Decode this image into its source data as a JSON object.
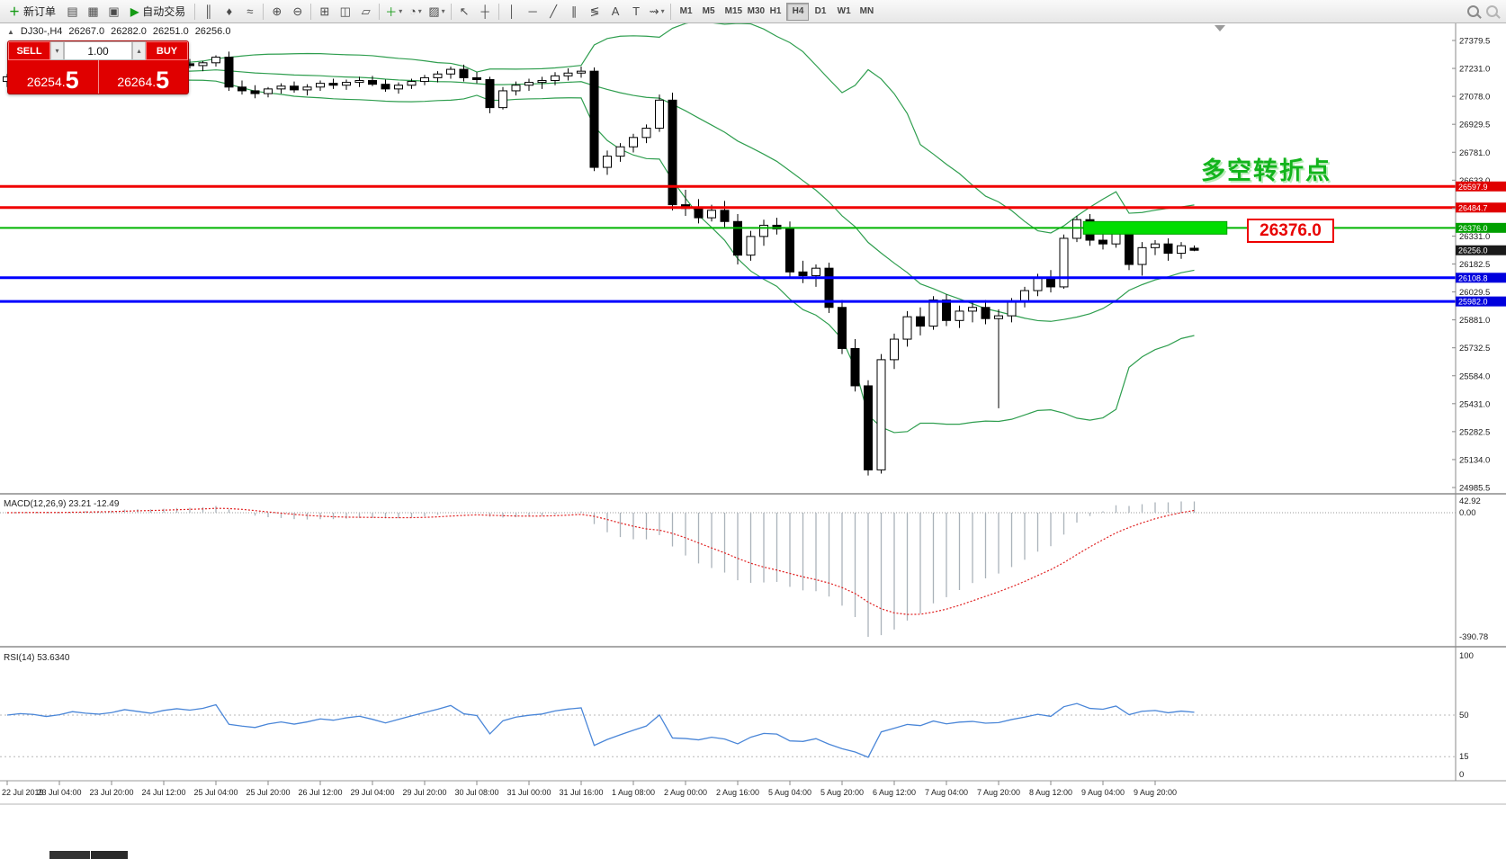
{
  "toolbar": {
    "new_order": {
      "icon_glyph": "＋",
      "label": "新订单"
    },
    "autotrading": {
      "icon_glyph": "▶",
      "label": "自动交易"
    },
    "icons_left": [
      {
        "name": "new-chart-icon",
        "glyph": "▤"
      },
      {
        "name": "profiles-icon",
        "glyph": "▦"
      },
      {
        "name": "data-window-icon",
        "glyph": "▣"
      }
    ],
    "icons_right": [
      {
        "sep": true
      },
      {
        "name": "bar-chart-icon",
        "glyph": "║"
      },
      {
        "name": "candlestick-icon",
        "glyph": "♦"
      },
      {
        "name": "line-chart-icon",
        "glyph": "≈"
      },
      {
        "sep": true
      },
      {
        "name": "zoom-in-icon",
        "glyph": "⊕"
      },
      {
        "name": "zoom-out-icon",
        "glyph": "⊖"
      },
      {
        "sep": true
      },
      {
        "name": "tile-windows-icon",
        "glyph": "⊞"
      },
      {
        "name": "arrange-windows-icon",
        "glyph": "◫"
      },
      {
        "name": "cascade-windows-icon",
        "glyph": "▱"
      },
      {
        "sep": true
      },
      {
        "name": "indicators-icon",
        "glyph": "＋",
        "color": "#149a14",
        "caret": true
      },
      {
        "name": "periods-icon",
        "glyph": "◔",
        "caret": true
      },
      {
        "name": "templates-icon",
        "glyph": "▨",
        "caret": true
      },
      {
        "sep": true
      },
      {
        "name": "cursor-icon",
        "glyph": "↖"
      },
      {
        "name": "crosshair-icon",
        "glyph": "┼"
      },
      {
        "sep": true
      },
      {
        "name": "vertical-line-icon",
        "glyph": "│"
      },
      {
        "name": "horizontal-line-icon",
        "glyph": "─"
      },
      {
        "name": "trendline-icon",
        "glyph": "╱"
      },
      {
        "name": "channel-icon",
        "glyph": "∥"
      },
      {
        "name": "fibonacci-icon",
        "glyph": "≶"
      },
      {
        "name": "text-icon",
        "glyph": "A"
      },
      {
        "name": "label-icon",
        "glyph": "T"
      },
      {
        "name": "arrows-icon",
        "glyph": "⇝",
        "caret": true
      },
      {
        "sep": true
      }
    ],
    "timeframes": [
      "M1",
      "M5",
      "M15",
      "M30",
      "H1",
      "H4",
      "D1",
      "W1",
      "MN"
    ],
    "active_timeframe": "H4"
  },
  "chart": {
    "header": {
      "icon": "▲",
      "symbol_period": "DJ30-,H4",
      "open": "26267.0",
      "high": "26282.0",
      "low": "26251.0",
      "close": "26256.0"
    },
    "trade_panel": {
      "sell_label": "SELL",
      "buy_label": "BUY",
      "volume": "1.00",
      "spin_down": "▾",
      "spin_up": "▴",
      "sell_price_main": "26254.",
      "sell_price_big": "5",
      "buy_price_main": "26264.",
      "buy_price_big": "5",
      "panel_color": "#e00000"
    },
    "annotations": {
      "turning_point_text": "多空转折点",
      "turning_point_color": "#12b41c",
      "price_box_text": "26376.0",
      "price_box_color": "#e80000"
    },
    "hlines": [
      {
        "price": 26597.9,
        "color": "#f00000",
        "width": 3,
        "label": "26597.9",
        "tag_bg": "#e00000"
      },
      {
        "price": 26484.7,
        "color": "#f00000",
        "width": 3,
        "label": "26484.7",
        "tag_bg": "#e00000"
      },
      {
        "price": 26376.0,
        "color": "#00b400",
        "width": 2,
        "label": "26376.0",
        "tag_bg": "#00a000"
      },
      {
        "price": 26108.8,
        "color": "#0000ff",
        "width": 3,
        "label": "26108.8",
        "tag_bg": "#0000dd"
      },
      {
        "price": 25982.0,
        "color": "#0000ff",
        "width": 3,
        "label": "25982.0",
        "tag_bg": "#0000dd"
      }
    ],
    "current_price": {
      "value": 26256.0,
      "label": "26256.0",
      "tag_bg": "#1a1a1a"
    },
    "highlight_rect": {
      "price": 26376.0,
      "from_candle": 82.5,
      "to_candle": 93.5,
      "color": "#00dd00"
    },
    "price_axis_labels": [
      "27379.5",
      "27231.0",
      "27078.0",
      "26929.5",
      "26781.0",
      "26633.0",
      "26484.7",
      "26331.0",
      "26182.5",
      "26029.5",
      "25881.0",
      "25732.5",
      "25584.0",
      "25431.0",
      "25282.5",
      "25134.0",
      "24985.5"
    ],
    "time_axis_labels": [
      "22 Jul 2019",
      "23 Jul 04:00",
      "23 Jul 20:00",
      "24 Jul 12:00",
      "25 Jul 04:00",
      "25 Jul 20:00",
      "26 Jul 12:00",
      "29 Jul 04:00",
      "29 Jul 20:00",
      "30 Jul 08:00",
      "31 Jul 00:00",
      "31 Jul 16:00",
      "1 Aug 08:00",
      "2 Aug 00:00",
      "2 Aug 16:00",
      "5 Aug 04:00",
      "5 Aug 20:00",
      "6 Aug 12:00",
      "7 Aug 04:00",
      "7 Aug 20:00",
      "8 Aug 12:00",
      "9 Aug 04:00",
      "9 Aug 20:00"
    ],
    "colors": {
      "bull": "#ffffff",
      "bear": "#000000",
      "wick": "#000000",
      "bollinger": "#2f9e4f",
      "macd_bar": "#aab2ba",
      "macd_signal": "#e02020",
      "rsi_line": "#4a86d8"
    }
  },
  "macd": {
    "label": "MACD(12,26,9) 23.21 -12.49",
    "axis_labels": [
      "42.92",
      "0.00",
      "-390.78"
    ],
    "fast": 12,
    "slow": 26,
    "signal": 9
  },
  "rsi": {
    "label": "RSI(14) 53.6340",
    "axis_labels": [
      "100",
      "50",
      "15",
      "0"
    ],
    "period": 14,
    "levels": [
      50,
      15
    ]
  },
  "chart_data": {
    "type": "candlestick",
    "symbol": "DJ30-",
    "period": "H4",
    "price_range": [
      24985.5,
      27379.5
    ],
    "ohlc": [
      [
        27160,
        27200,
        27130,
        27185
      ],
      [
        27185,
        27220,
        27160,
        27205
      ],
      [
        27205,
        27230,
        27180,
        27195
      ],
      [
        27195,
        27215,
        27150,
        27170
      ],
      [
        27170,
        27200,
        27140,
        27190
      ],
      [
        27190,
        27240,
        27170,
        27225
      ],
      [
        27225,
        27250,
        27190,
        27210
      ],
      [
        27210,
        27235,
        27180,
        27200
      ],
      [
        27200,
        27230,
        27170,
        27215
      ],
      [
        27215,
        27260,
        27195,
        27245
      ],
      [
        27245,
        27270,
        27210,
        27230
      ],
      [
        27230,
        27255,
        27195,
        27215
      ],
      [
        27215,
        27250,
        27185,
        27240
      ],
      [
        27240,
        27275,
        27220,
        27255
      ],
      [
        27255,
        27280,
        27230,
        27245
      ],
      [
        27245,
        27270,
        27215,
        27260
      ],
      [
        27260,
        27300,
        27240,
        27290
      ],
      [
        27290,
        27320,
        27110,
        27130
      ],
      [
        27130,
        27165,
        27090,
        27110
      ],
      [
        27110,
        27140,
        27070,
        27095
      ],
      [
        27095,
        27130,
        27075,
        27120
      ],
      [
        27120,
        27150,
        27095,
        27135
      ],
      [
        27135,
        27160,
        27100,
        27115
      ],
      [
        27115,
        27145,
        27085,
        27130
      ],
      [
        27130,
        27165,
        27110,
        27150
      ],
      [
        27150,
        27175,
        27120,
        27140
      ],
      [
        27140,
        27170,
        27115,
        27155
      ],
      [
        27155,
        27185,
        27130,
        27165
      ],
      [
        27165,
        27190,
        27135,
        27145
      ],
      [
        27145,
        27170,
        27105,
        27120
      ],
      [
        27120,
        27155,
        27095,
        27140
      ],
      [
        27140,
        27175,
        27120,
        27160
      ],
      [
        27160,
        27195,
        27140,
        27180
      ],
      [
        27180,
        27215,
        27155,
        27200
      ],
      [
        27200,
        27240,
        27175,
        27225
      ],
      [
        27225,
        27250,
        27160,
        27180
      ],
      [
        27180,
        27210,
        27150,
        27170
      ],
      [
        27170,
        27185,
        26990,
        27020
      ],
      [
        27020,
        27130,
        27010,
        27110
      ],
      [
        27110,
        27160,
        27085,
        27140
      ],
      [
        27140,
        27175,
        27110,
        27155
      ],
      [
        27155,
        27185,
        27120,
        27165
      ],
      [
        27165,
        27210,
        27140,
        27190
      ],
      [
        27190,
        27230,
        27165,
        27205
      ],
      [
        27205,
        27240,
        27180,
        27215
      ],
      [
        27215,
        27235,
        26680,
        26700
      ],
      [
        26700,
        26790,
        26660,
        26760
      ],
      [
        26760,
        26830,
        26730,
        26810
      ],
      [
        26810,
        26880,
        26780,
        26860
      ],
      [
        26860,
        26930,
        26830,
        26910
      ],
      [
        26910,
        27090,
        26890,
        27060
      ],
      [
        27060,
        27100,
        26470,
        26500
      ],
      [
        26500,
        26580,
        26440,
        26480
      ],
      [
        26480,
        26530,
        26400,
        26430
      ],
      [
        26430,
        26500,
        26410,
        26470
      ],
      [
        26470,
        26520,
        26380,
        26410
      ],
      [
        26410,
        26450,
        26180,
        26230
      ],
      [
        26230,
        26360,
        26200,
        26330
      ],
      [
        26330,
        26420,
        26280,
        26390
      ],
      [
        26390,
        26430,
        26340,
        26370
      ],
      [
        26370,
        26410,
        26110,
        26140
      ],
      [
        26140,
        26200,
        26080,
        26120
      ],
      [
        26120,
        26180,
        26060,
        26160
      ],
      [
        26160,
        26190,
        25920,
        25950
      ],
      [
        25950,
        25990,
        25700,
        25730
      ],
      [
        25730,
        25780,
        25500,
        25530
      ],
      [
        25530,
        25560,
        25050,
        25080
      ],
      [
        25080,
        25700,
        25060,
        25670
      ],
      [
        25670,
        25810,
        25620,
        25780
      ],
      [
        25780,
        25930,
        25740,
        25900
      ],
      [
        25900,
        25950,
        25800,
        25850
      ],
      [
        25850,
        26010,
        25830,
        25990
      ],
      [
        25990,
        26020,
        25850,
        25880
      ],
      [
        25880,
        25960,
        25840,
        25930
      ],
      [
        25930,
        25980,
        25870,
        25950
      ],
      [
        25950,
        25990,
        25860,
        25890
      ],
      [
        25890,
        25940,
        25410,
        25905
      ],
      [
        25905,
        26000,
        25870,
        25980
      ],
      [
        25980,
        26060,
        25950,
        26040
      ],
      [
        26040,
        26130,
        26010,
        26110
      ],
      [
        26110,
        26150,
        26030,
        26060
      ],
      [
        26060,
        26340,
        26050,
        26320
      ],
      [
        26320,
        26440,
        26300,
        26420
      ],
      [
        26420,
        26450,
        26280,
        26310
      ],
      [
        26310,
        26380,
        26260,
        26290
      ],
      [
        26290,
        26400,
        26270,
        26380
      ],
      [
        26380,
        26410,
        26150,
        26180
      ],
      [
        26180,
        26300,
        26120,
        26270
      ],
      [
        26270,
        26310,
        26230,
        26290
      ],
      [
        26290,
        26320,
        26200,
        26240
      ],
      [
        26240,
        26300,
        26210,
        26280
      ],
      [
        26267,
        26282,
        26251,
        26256
      ]
    ]
  }
}
